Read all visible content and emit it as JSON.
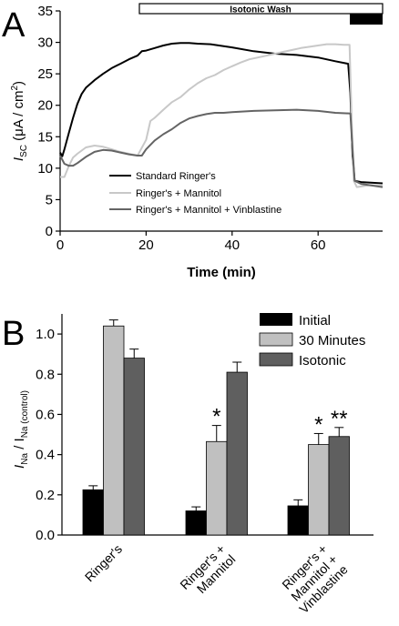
{
  "panels": {
    "a": {
      "letter": "A"
    },
    "b": {
      "letter": "B"
    }
  },
  "colors": {
    "standard": "#000000",
    "mannitol": "#c8c8c8",
    "vinblastine": "#646464",
    "initial_bar": "#000000",
    "min30_bar": "#c0c0c0",
    "isotonic_bar": "#5f5f5f"
  },
  "chart_data": [
    {
      "type": "line",
      "title": "",
      "xlabel": "Time (min)",
      "ylabel": "I_SC (μA / cm²)",
      "ylabel_main": "I",
      "ylabel_sub": "SC",
      "ylabel_unit": " (μA / cm",
      "ylabel_sup": "2",
      "ylabel_close": ")",
      "xlim": [
        0,
        75
      ],
      "ylim": [
        0,
        35
      ],
      "xticks": [
        "0",
        "20",
        "40",
        "60"
      ],
      "yticks": [
        "0",
        "5",
        "10",
        "15",
        "20",
        "25",
        "30",
        "35"
      ],
      "legend_position": "lower-center",
      "annotation": {
        "label": "Isotonic Wash"
      },
      "series": [
        {
          "name": "Standard Ringer's",
          "x": [
            0,
            0.5,
            1,
            2,
            3,
            4,
            5,
            6,
            8,
            10,
            12,
            14,
            16,
            18,
            19,
            20,
            22,
            24,
            26,
            28,
            30,
            32,
            35,
            40,
            45,
            50,
            55,
            60,
            64,
            67,
            67.5,
            68,
            68.5,
            70,
            75
          ],
          "y": [
            12.5,
            11.9,
            13.0,
            15.5,
            18.0,
            20.2,
            21.8,
            22.8,
            24.0,
            25.0,
            25.9,
            26.6,
            27.3,
            27.9,
            28.6,
            28.7,
            29.1,
            29.5,
            29.8,
            29.9,
            29.9,
            29.8,
            29.7,
            29.2,
            28.6,
            28.2,
            28.0,
            27.6,
            27.0,
            26.6,
            22.0,
            12.0,
            8.0,
            7.8,
            7.6
          ]
        },
        {
          "name": "Ringer's + Mannitol",
          "x": [
            0,
            1,
            2,
            3,
            4,
            6,
            8,
            10,
            12,
            14,
            16,
            18,
            20,
            21,
            22,
            24,
            26,
            28,
            30,
            32,
            34,
            36,
            38,
            40,
            42,
            44,
            46,
            48,
            50,
            52,
            54,
            56,
            58,
            60,
            62,
            64,
            66,
            67.3,
            67.8,
            68.3,
            69,
            72,
            75
          ],
          "y": [
            8.6,
            8.6,
            10.3,
            11.7,
            12.3,
            13.3,
            13.6,
            13.4,
            13.0,
            12.6,
            12.3,
            12.0,
            14.5,
            17.5,
            18.0,
            19.3,
            20.5,
            21.3,
            22.5,
            23.5,
            24.3,
            24.8,
            25.6,
            26.2,
            26.8,
            27.3,
            27.6,
            27.9,
            28.2,
            28.5,
            28.8,
            29.1,
            29.3,
            29.5,
            29.7,
            29.7,
            29.6,
            29.6,
            18.0,
            8.0,
            7.0,
            7.3,
            7.2
          ]
        },
        {
          "name": "Ringer's + Mannitol + Vinblastine",
          "x": [
            0,
            1,
            2,
            3,
            4,
            6,
            8,
            10,
            12,
            14,
            16,
            18,
            19,
            20,
            22,
            24,
            26,
            28,
            30,
            32,
            34,
            36,
            38,
            40,
            45,
            50,
            55,
            60,
            64,
            67.5,
            68,
            68.5,
            70,
            75
          ],
          "y": [
            12.0,
            10.7,
            10.4,
            10.4,
            10.8,
            11.8,
            12.6,
            12.9,
            12.8,
            12.5,
            12.2,
            12.0,
            12.0,
            13.0,
            14.4,
            15.4,
            16.2,
            17.2,
            17.9,
            18.3,
            18.6,
            18.8,
            18.8,
            18.9,
            19.1,
            19.2,
            19.3,
            19.1,
            18.8,
            18.7,
            13.0,
            8.0,
            7.5,
            7.0
          ]
        }
      ]
    },
    {
      "type": "bar",
      "title": "",
      "xlabel": "",
      "ylabel": "I_Na / I_Na (control)",
      "ylabel_main": "I",
      "ylabel_sub": "Na",
      "ylabel_slash": " / I",
      "ylabel_sub2": "Na (control)",
      "ylim": [
        0,
        1.1
      ],
      "yticks": [
        "0.0",
        "0.2",
        "0.4",
        "0.6",
        "0.8",
        "1.0"
      ],
      "categories": [
        "Ringer's",
        "Ringer's + Mannitol",
        "Ringer's + Mannitol + Vinblastine"
      ],
      "category_lines": [
        [
          "Ringer's"
        ],
        [
          "Ringer's +",
          "Mannitol"
        ],
        [
          "Ringer's +",
          "Mannitol +",
          "Vinblastine"
        ]
      ],
      "legend_position": "top-right",
      "series": [
        {
          "name": "Initial",
          "values": [
            0.225,
            0.12,
            0.145
          ],
          "errors": [
            0.02,
            0.02,
            0.03
          ]
        },
        {
          "name": "30 Minutes",
          "values": [
            1.04,
            0.465,
            0.45
          ],
          "errors": [
            0.03,
            0.08,
            0.055
          ]
        },
        {
          "name": "Isotonic",
          "values": [
            0.88,
            0.81,
            0.49
          ],
          "errors": [
            0.045,
            0.05,
            0.045
          ]
        }
      ],
      "significance": [
        {
          "category": 1,
          "series": 1,
          "label": "*"
        },
        {
          "category": 2,
          "series": 1,
          "label": "*"
        },
        {
          "category": 2,
          "series": 2,
          "label": "**"
        }
      ]
    }
  ]
}
